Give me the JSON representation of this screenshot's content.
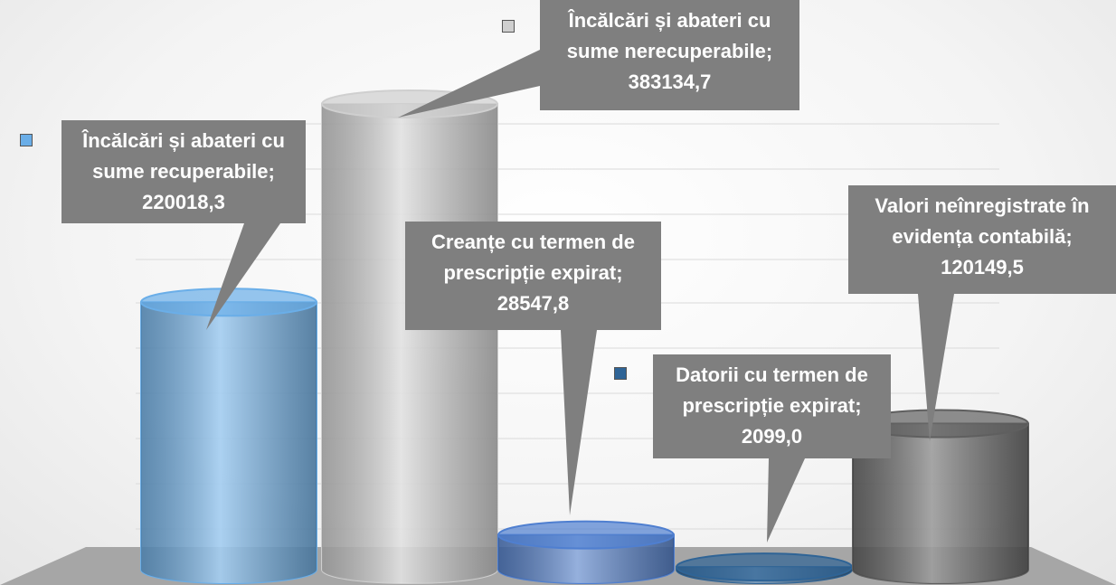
{
  "chart_data": {
    "type": "cylinder",
    "categories": [
      "Încălcări și abateri cu sume recuperabile",
      "Încălcări și abateri cu sume nerecuperabile",
      "Creanțe cu termen de prescripție expirat",
      "Datorii cu termen de prescripție expirat",
      "Valori neînregistrate în evidența contabilă"
    ],
    "label_separator": ";",
    "values": [
      220018.3,
      383134.7,
      28547.8,
      2099.0,
      120149.5
    ],
    "value_labels": [
      "220018,3",
      "383134,7",
      "28547,8",
      "2099,0",
      "120149,5"
    ],
    "colors": [
      "#6aaee8",
      "#cfcfcf",
      "#4f7fd0",
      "#2f6496",
      "#5f5f5f"
    ],
    "grid": true
  }
}
